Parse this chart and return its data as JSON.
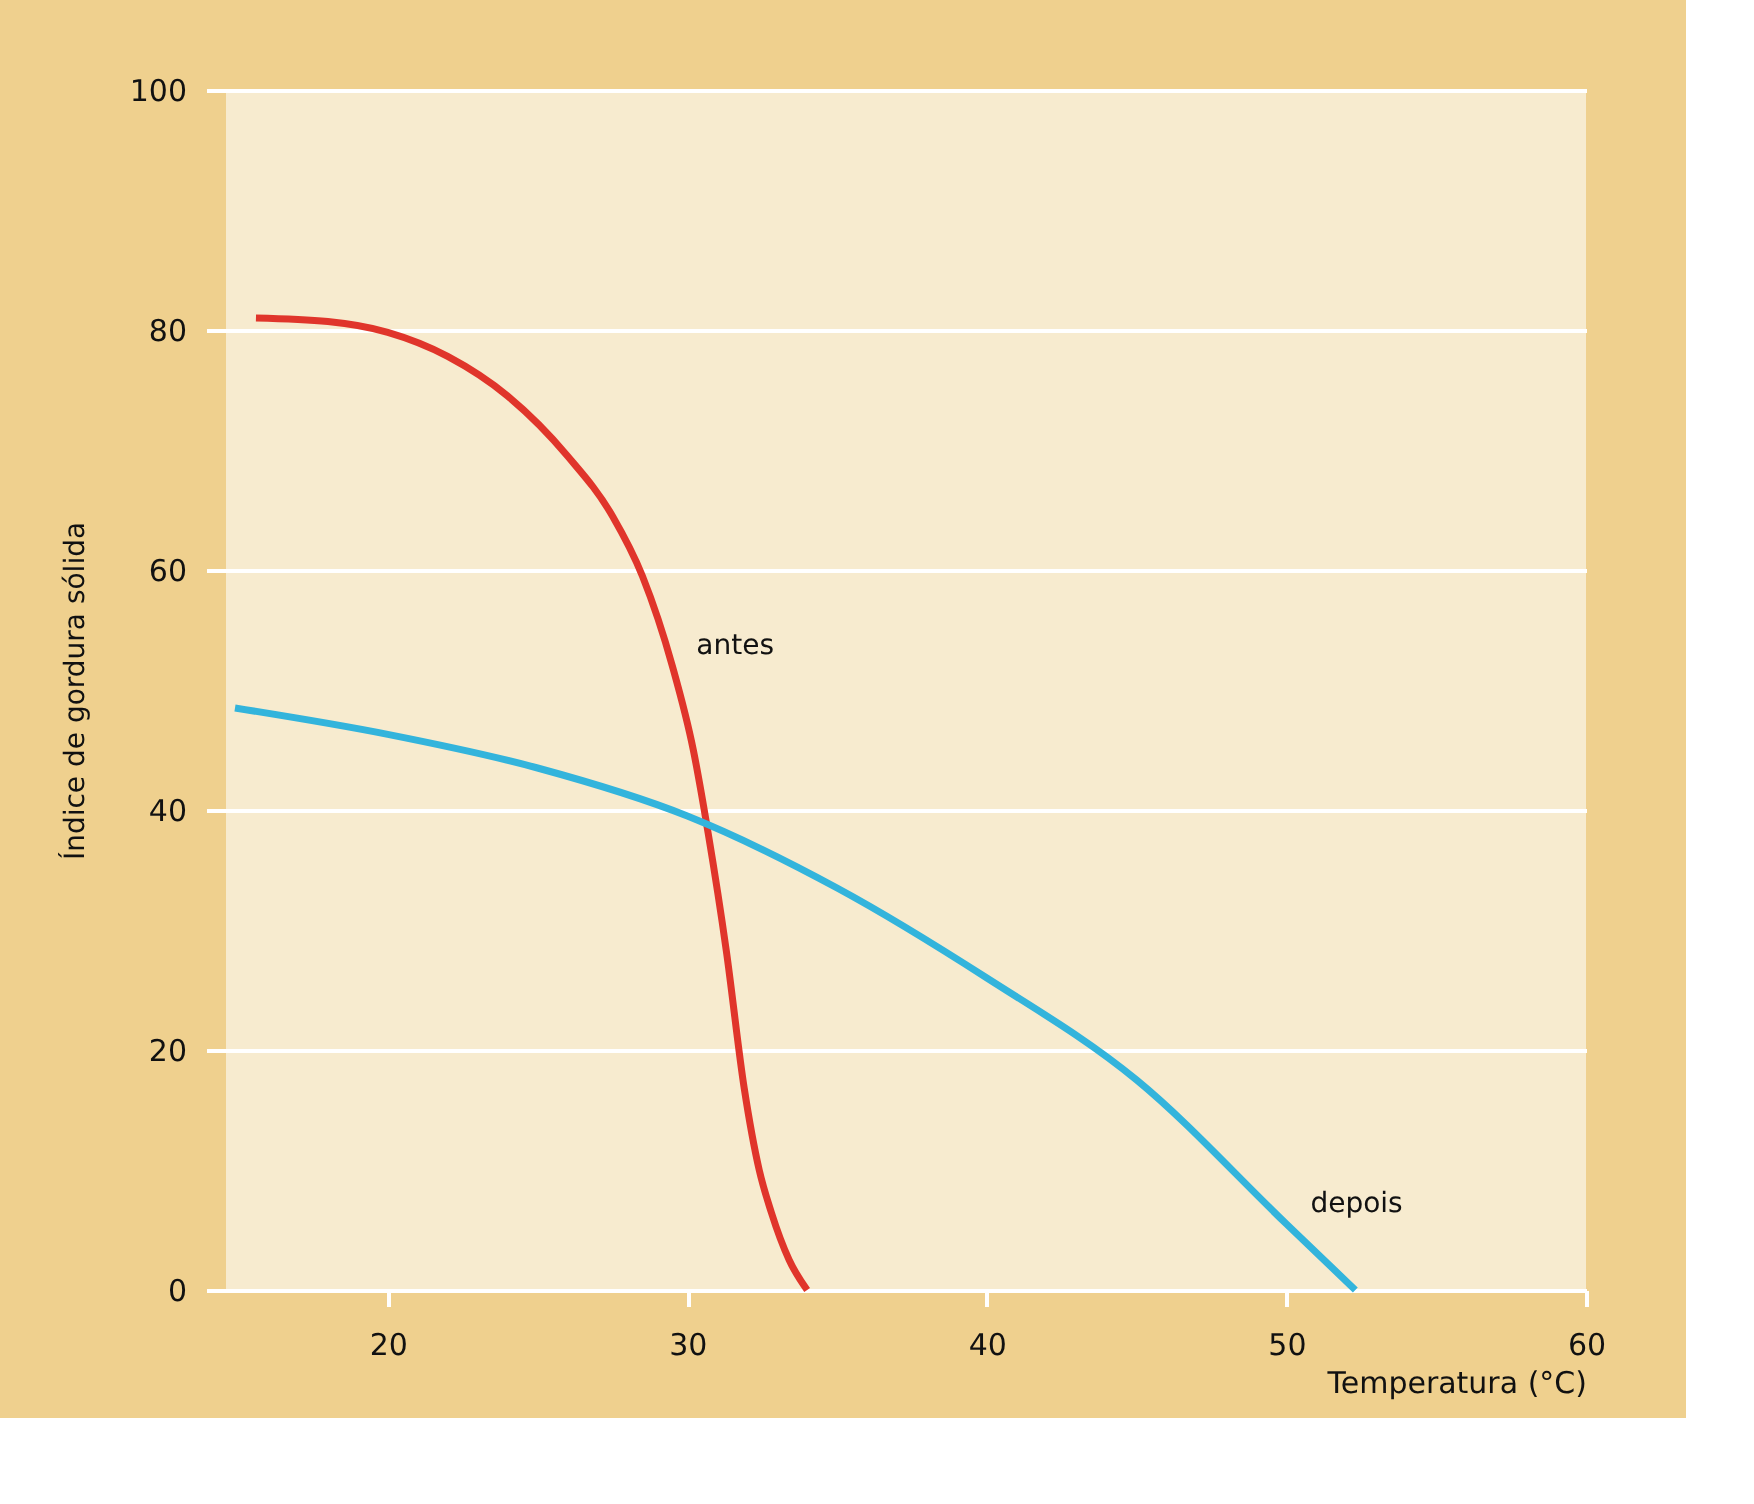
{
  "chart_data": {
    "type": "line",
    "xlabel": "Temperatura (°C)",
    "ylabel": "Índice de gordura sólida",
    "xlim": [
      14.6,
      60
    ],
    "xticks": [
      20,
      30,
      40,
      50,
      60
    ],
    "ylim": [
      0,
      100
    ],
    "yticks": [
      0,
      20,
      40,
      60,
      80,
      100
    ],
    "grid": "y",
    "marker": "none",
    "line_style": "solid",
    "series": [
      {
        "name": "antes",
        "color": "#e0352b",
        "x": [
          15.6,
          18.0,
          20.0,
          22.0,
          24.0,
          26.0,
          27.5,
          28.5,
          29.5,
          30.2,
          30.7,
          31.3,
          31.9,
          32.4,
          32.8,
          33.4,
          34.0
        ],
        "values": [
          81.0,
          80.7,
          79.8,
          77.8,
          74.5,
          69.5,
          64.5,
          59.5,
          52.0,
          45.0,
          38.0,
          28.3,
          16.8,
          10.0,
          6.5,
          2.5,
          0
        ]
      },
      {
        "name": "depois",
        "color": "#33b4dc",
        "x": [
          14.9,
          20.0,
          25.0,
          30.0,
          35.0,
          40.0,
          45.0,
          50.0,
          52.3
        ],
        "values": [
          48.5,
          46.3,
          43.5,
          39.5,
          33.5,
          26.0,
          17.5,
          5.5,
          0
        ]
      }
    ]
  }
}
